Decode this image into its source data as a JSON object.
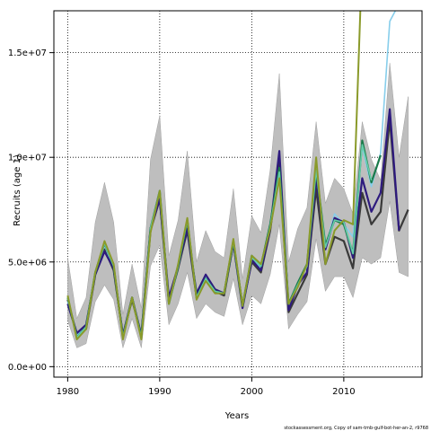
{
  "chart_data": {
    "type": "line",
    "title": "",
    "xlabel": "Years",
    "ylabel": "Recruits (age 1)",
    "xlim": [
      1978.5,
      2018.5
    ],
    "ylim": [
      -500000,
      17000000
    ],
    "xticks": [
      1980,
      1990,
      2000,
      2010
    ],
    "xtick_labels": [
      "1980",
      "1990",
      "2000",
      "2010"
    ],
    "yticks": [
      0,
      5000000,
      10000000,
      15000000
    ],
    "ytick_labels": [
      "0.0e+00",
      "5.0e+06",
      "1.0e+07",
      "1.5e+07"
    ],
    "grid": true,
    "footer": "stockassessment.org, Copy of sam-tmb-gulf-bot-her-an-2, r9768",
    "colors": {
      "band": "#bebebe",
      "band_edge": "#a0a0a0",
      "grid": "#000000"
    },
    "band": {
      "x": [
        1980,
        1981,
        1982,
        1983,
        1984,
        1985,
        1986,
        1987,
        1988,
        1989,
        1990,
        1991,
        1992,
        1993,
        1994,
        1995,
        1996,
        1997,
        1998,
        1999,
        2000,
        2001,
        2002,
        2003,
        2004,
        2005,
        2006,
        2007,
        2008,
        2009,
        2010,
        2011,
        2012,
        2013,
        2014,
        2015,
        2016,
        2017
      ],
      "upper": [
        5200000,
        2300000,
        3300000,
        6900000,
        8800000,
        6900000,
        2500000,
        4900000,
        2800000,
        9900000,
        12000000,
        5300000,
        7000000,
        10300000,
        5000000,
        6500000,
        5500000,
        5200000,
        8500000,
        4200000,
        7200000,
        6400000,
        9400000,
        14000000,
        5000000,
        6600000,
        7600000,
        11700000,
        7800000,
        9000000,
        8500000,
        7300000,
        11700000,
        9900000,
        8900000,
        14500000,
        10000000,
        12900000
      ],
      "lower": [
        2200000,
        900000,
        1100000,
        3100000,
        3900000,
        3200000,
        900000,
        2300000,
        900000,
        4800000,
        5800000,
        2000000,
        3000000,
        4500000,
        2300000,
        3000000,
        2600000,
        2400000,
        4200000,
        2000000,
        3400000,
        3000000,
        4400000,
        6800000,
        1800000,
        2500000,
        3100000,
        6100000,
        3600000,
        4300000,
        4300000,
        3300000,
        5200000,
        4900000,
        5200000,
        7900000,
        4500000,
        4300000
      ]
    },
    "series": [
      {
        "color": "#3a3a3a",
        "width": 2.2,
        "x": [
          1980,
          1981,
          1982,
          1983,
          1984,
          1985,
          1986,
          1987,
          1988,
          1989,
          1990,
          1991,
          1992,
          1993,
          1994,
          1995,
          1996,
          1997,
          1998,
          1999,
          2000,
          2001,
          2002,
          2003,
          2004,
          2005,
          2006,
          2007,
          2008,
          2009,
          2010,
          2011,
          2012,
          2013,
          2014,
          2015,
          2016,
          2017
        ],
        "y": [
          3200000,
          1500000,
          1800000,
          4400000,
          5600000,
          4600000,
          1500000,
          3200000,
          1500000,
          6500000,
          8000000,
          3100000,
          4700000,
          6500000,
          3300000,
          4200000,
          3600000,
          3400000,
          5900000,
          2900000,
          5000000,
          4500000,
          6500000,
          9800000,
          2600000,
          3500000,
          4400000,
          8500000,
          4900000,
          6200000,
          6000000,
          4700000,
          8300000,
          6800000,
          7400000,
          11800000,
          6500000,
          7500000
        ]
      },
      {
        "color": "#87ceeb",
        "width": 1.6,
        "x": [
          1980,
          1981,
          1982,
          1983,
          1984,
          1985,
          1986,
          1987,
          1988,
          1989,
          1990,
          1991,
          1992,
          1993,
          1994,
          1995,
          1996,
          1997,
          1998,
          1999,
          2000,
          2001,
          2002,
          2003,
          2004,
          2005,
          2006,
          2007,
          2008,
          2009,
          2010,
          2011,
          2012,
          2013,
          2014,
          2015,
          2015.6
        ],
        "y": [
          3100000,
          1500000,
          1900000,
          4500000,
          5800000,
          4700000,
          1500000,
          3300000,
          1500000,
          6600000,
          8300000,
          3200000,
          4900000,
          7000000,
          3300000,
          4300000,
          3700000,
          3500000,
          6000000,
          2900000,
          5100000,
          4700000,
          6700000,
          9400000,
          3000000,
          3900000,
          4900000,
          9600000,
          5700000,
          7300000,
          6800000,
          6200000,
          10500000,
          8600000,
          10200000,
          16500000,
          17000000
        ]
      },
      {
        "color": "#2e1a7e",
        "width": 2.2,
        "x": [
          1980,
          1981,
          1982,
          1983,
          1984,
          1985,
          1986,
          1987,
          1988,
          1989,
          1990,
          1991,
          1992,
          1993,
          1994,
          1995,
          1996,
          1997,
          1998,
          1999,
          2000,
          2001,
          2002,
          2003,
          2004,
          2005,
          2006,
          2007,
          2008,
          2009,
          2010,
          2011,
          2012,
          2013,
          2014,
          2015,
          2016
        ],
        "y": [
          3000000,
          1600000,
          2000000,
          4400000,
          5500000,
          4700000,
          1500000,
          3300000,
          1500000,
          6600000,
          8000000,
          3300000,
          4800000,
          6600000,
          3500000,
          4400000,
          3700000,
          3500000,
          5900000,
          2800000,
          5100000,
          4600000,
          6600000,
          10300000,
          2700000,
          3900000,
          4500000,
          9000000,
          5600000,
          7100000,
          6900000,
          5200000,
          9000000,
          7400000,
          8300000,
          12300000,
          6500000
        ]
      },
      {
        "color": "#1b7a4a",
        "width": 2.2,
        "x": [
          1980,
          1981,
          1982,
          1983,
          1984,
          1985,
          1986,
          1987,
          1988,
          1989,
          1990,
          1991,
          1992,
          1993,
          1994,
          1995,
          1996,
          1997,
          1998,
          1999,
          2000,
          2001,
          2002,
          2003,
          2004,
          2005,
          2006,
          2007,
          2008,
          2009,
          2010,
          2011,
          2012,
          2013,
          2014
        ],
        "y": [
          3300000,
          1400000,
          1900000,
          4500000,
          5900000,
          4800000,
          1400000,
          3300000,
          1400000,
          6600000,
          8400000,
          3000000,
          4800000,
          7000000,
          3300000,
          4200000,
          3600000,
          3500000,
          6000000,
          2900000,
          5300000,
          4800000,
          6800000,
          9500000,
          3000000,
          4000000,
          4900000,
          9400000,
          5800000,
          7000000,
          6800000,
          5400000,
          10800000,
          8800000,
          10100000
        ]
      },
      {
        "color": "#66cdaa",
        "width": 1.6,
        "x": [
          1980,
          1981,
          1982,
          1983,
          1984,
          1985,
          1986,
          1987,
          1988,
          1989,
          1990,
          1991,
          1992,
          1993,
          1994,
          1995,
          1996,
          1997,
          1998,
          1999,
          2000,
          2001,
          2002,
          2003,
          2004,
          2005,
          2006,
          2007,
          2008,
          2009,
          2010,
          2011,
          2012,
          2013
        ],
        "y": [
          3300000,
          1400000,
          1900000,
          4500000,
          5900000,
          4800000,
          1400000,
          3300000,
          1400000,
          6600000,
          8400000,
          3000000,
          4800000,
          7000000,
          3300000,
          4200000,
          3600000,
          3500000,
          6000000,
          2900000,
          5200000,
          4800000,
          6700000,
          9300000,
          3000000,
          3900000,
          4800000,
          9400000,
          5700000,
          7000000,
          6900000,
          5400000,
          10600000,
          8900000
        ]
      },
      {
        "color": "#8a9a2a",
        "width": 2.0,
        "x": [
          1980,
          1981,
          1982,
          1983,
          1984,
          1985,
          1986,
          1987,
          1988,
          1989,
          1990,
          1991,
          1992,
          1993,
          1994,
          1995,
          1996,
          1997,
          1998,
          1999,
          2000,
          2001,
          2002,
          2003,
          2004,
          2005,
          2006,
          2007,
          2008,
          2009,
          2010,
          2011,
          2011.8
        ],
        "y": [
          3400000,
          1300000,
          1800000,
          4500000,
          6000000,
          4900000,
          1300000,
          3300000,
          1300000,
          6400000,
          8400000,
          3000000,
          4900000,
          7100000,
          3200000,
          4100000,
          3500000,
          3500000,
          6100000,
          2900000,
          5300000,
          4900000,
          6600000,
          9000000,
          3000000,
          3800000,
          4900000,
          10000000,
          4900000,
          6500000,
          7000000,
          6800000,
          17000000
        ]
      }
    ]
  }
}
